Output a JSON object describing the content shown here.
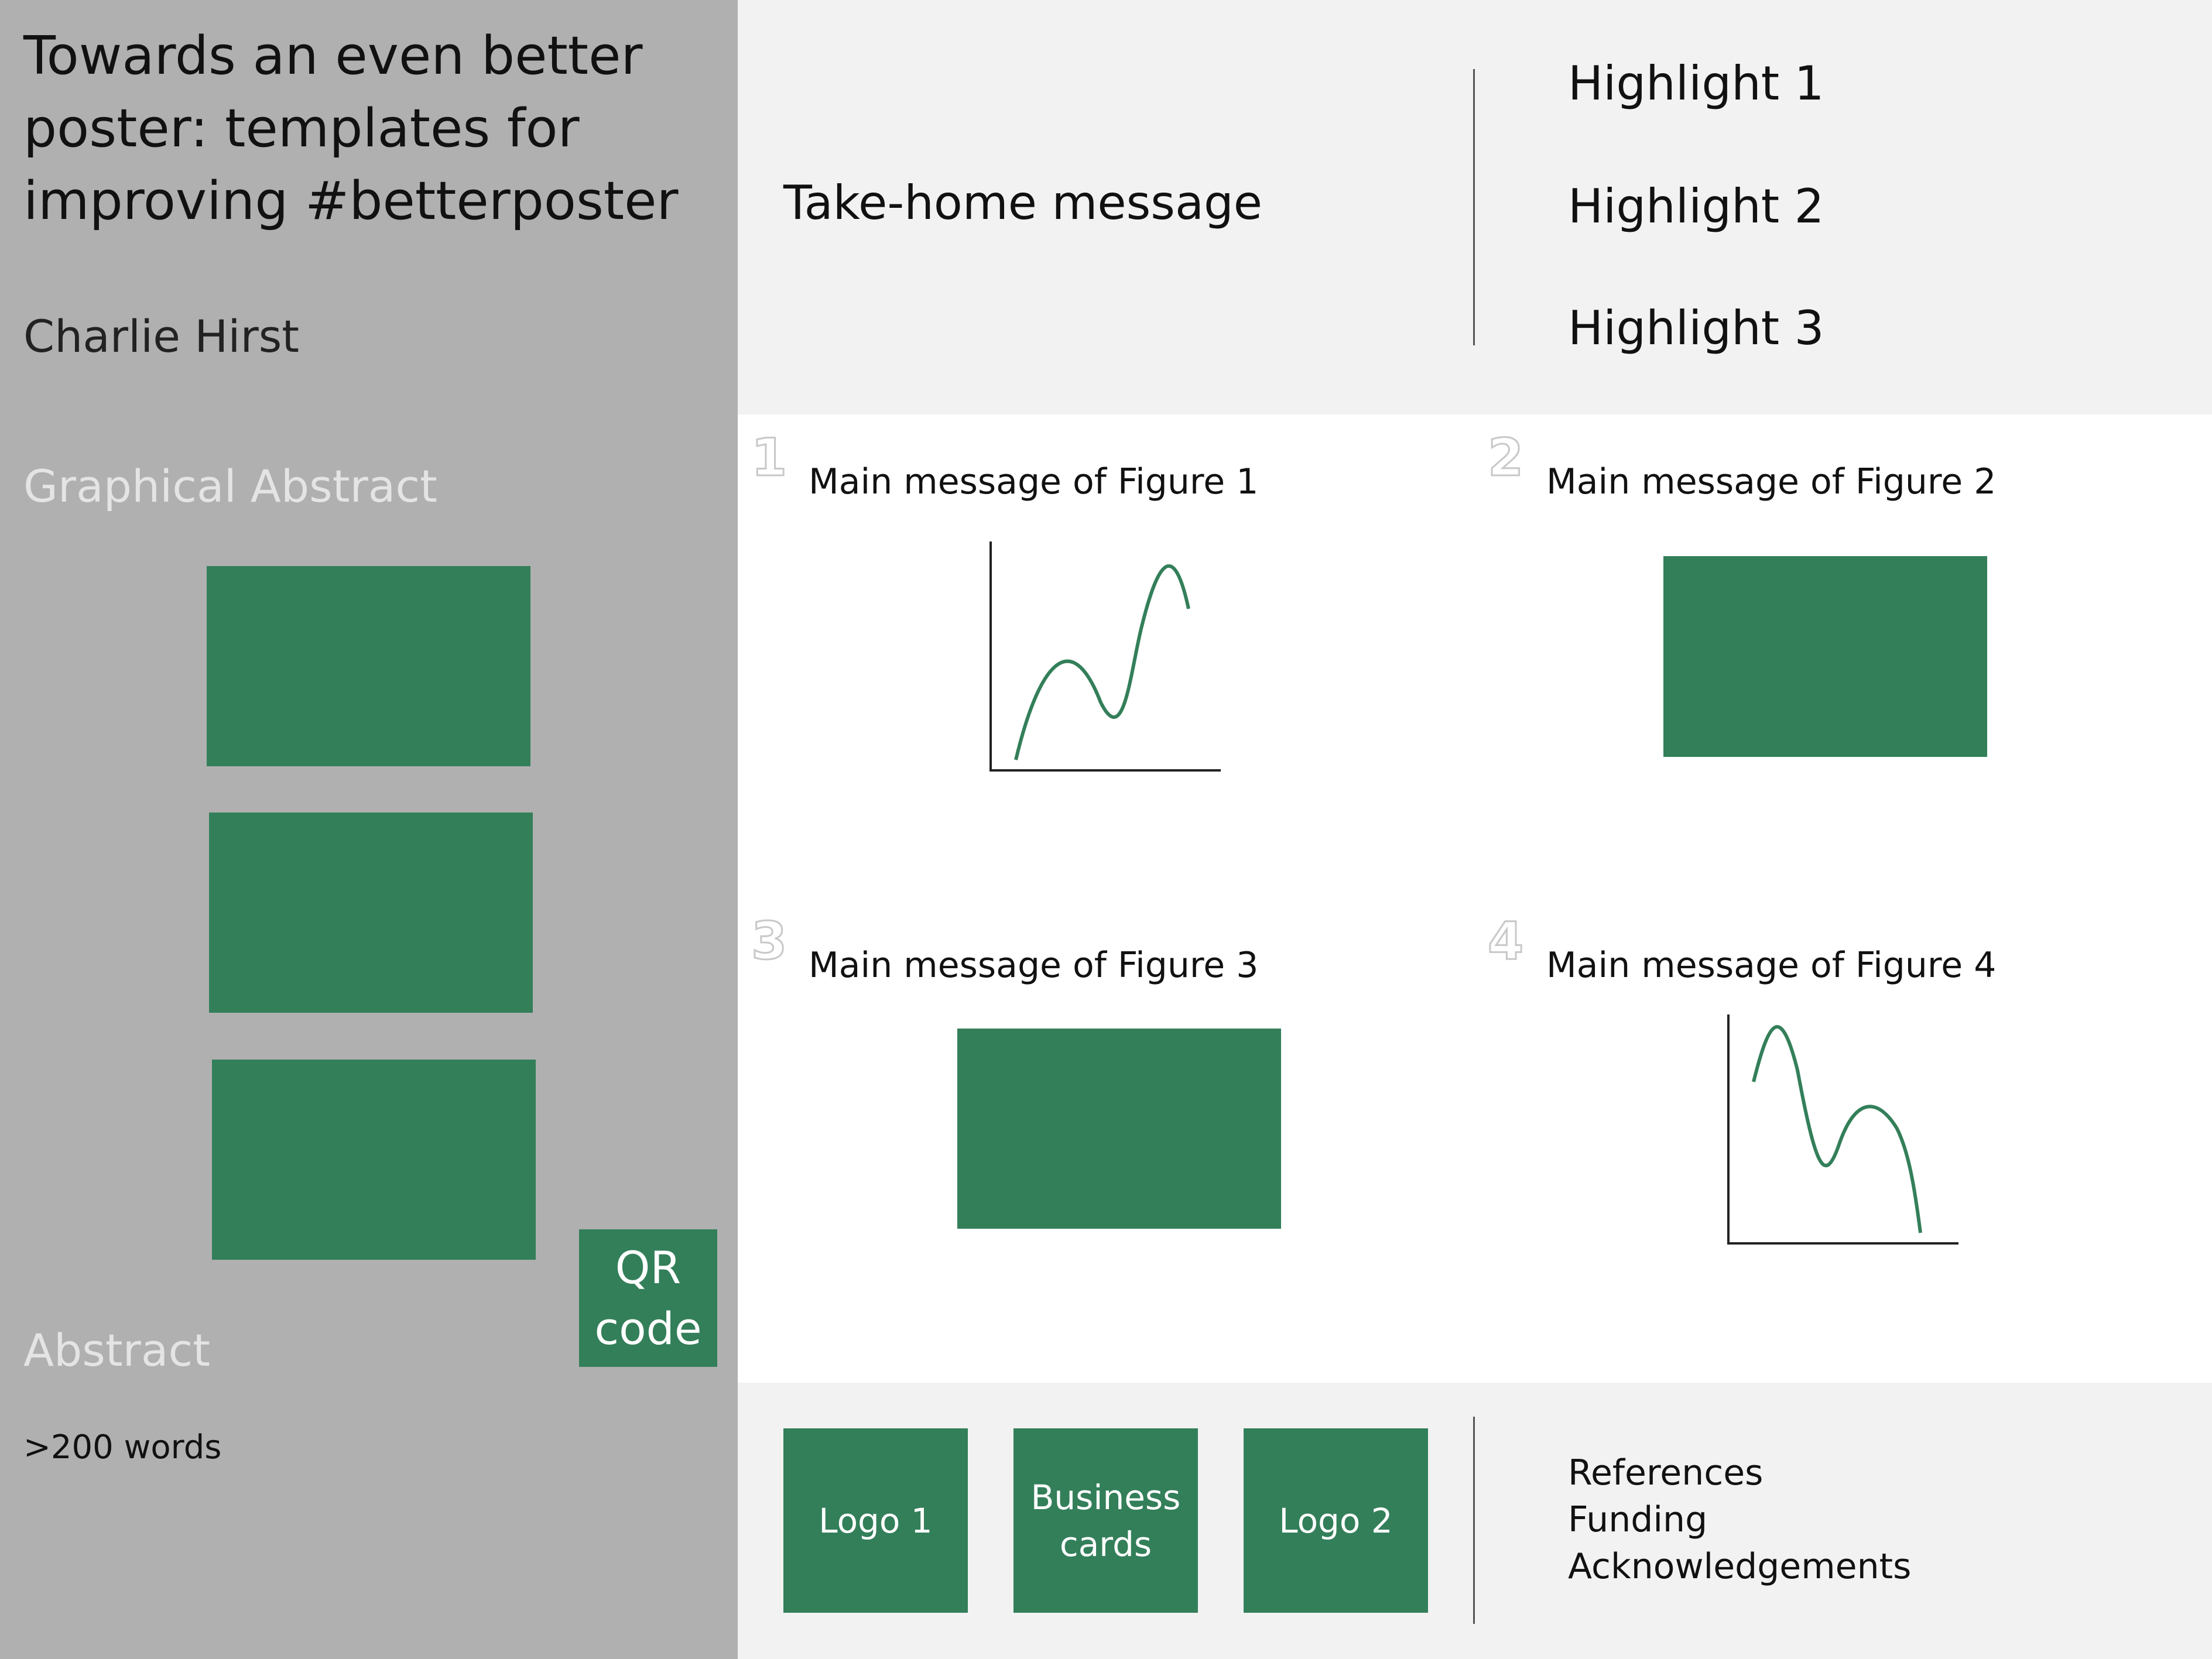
{
  "poster": {
    "title_lines": [
      "Towards an even better",
      "poster: templates for",
      "improving #betterposter"
    ],
    "author": "Charlie Hirst",
    "graphical_abstract_heading": "Graphical Abstract",
    "abstract_heading": "Abstract",
    "abstract_body": ">200 words",
    "qr_lines": [
      "QR",
      "code"
    ]
  },
  "takehome": {
    "message": "Take-home message",
    "highlights": [
      "Highlight 1",
      "Highlight 2",
      "Highlight 3"
    ]
  },
  "figures": [
    {
      "number": "1",
      "message": "Main message of Figure 1",
      "kind": "line-plot"
    },
    {
      "number": "2",
      "message": "Main message of Figure 2",
      "kind": "placeholder-box"
    },
    {
      "number": "3",
      "message": "Main message of Figure 3",
      "kind": "placeholder-box"
    },
    {
      "number": "4",
      "message": "Main message of Figure 4",
      "kind": "line-plot"
    }
  ],
  "footer": {
    "logo_1": "Logo 1",
    "business_cards_lines": [
      "Business",
      "cards"
    ],
    "logo_2": "Logo 2",
    "items": [
      "References",
      "Funding",
      "Acknowledgements"
    ]
  },
  "colors": {
    "accent_green": "#337f5a",
    "left_panel_gray": "#b0b0b0",
    "band_light_gray": "#f2f2f2",
    "muted_heading": "#e4e4e4"
  }
}
